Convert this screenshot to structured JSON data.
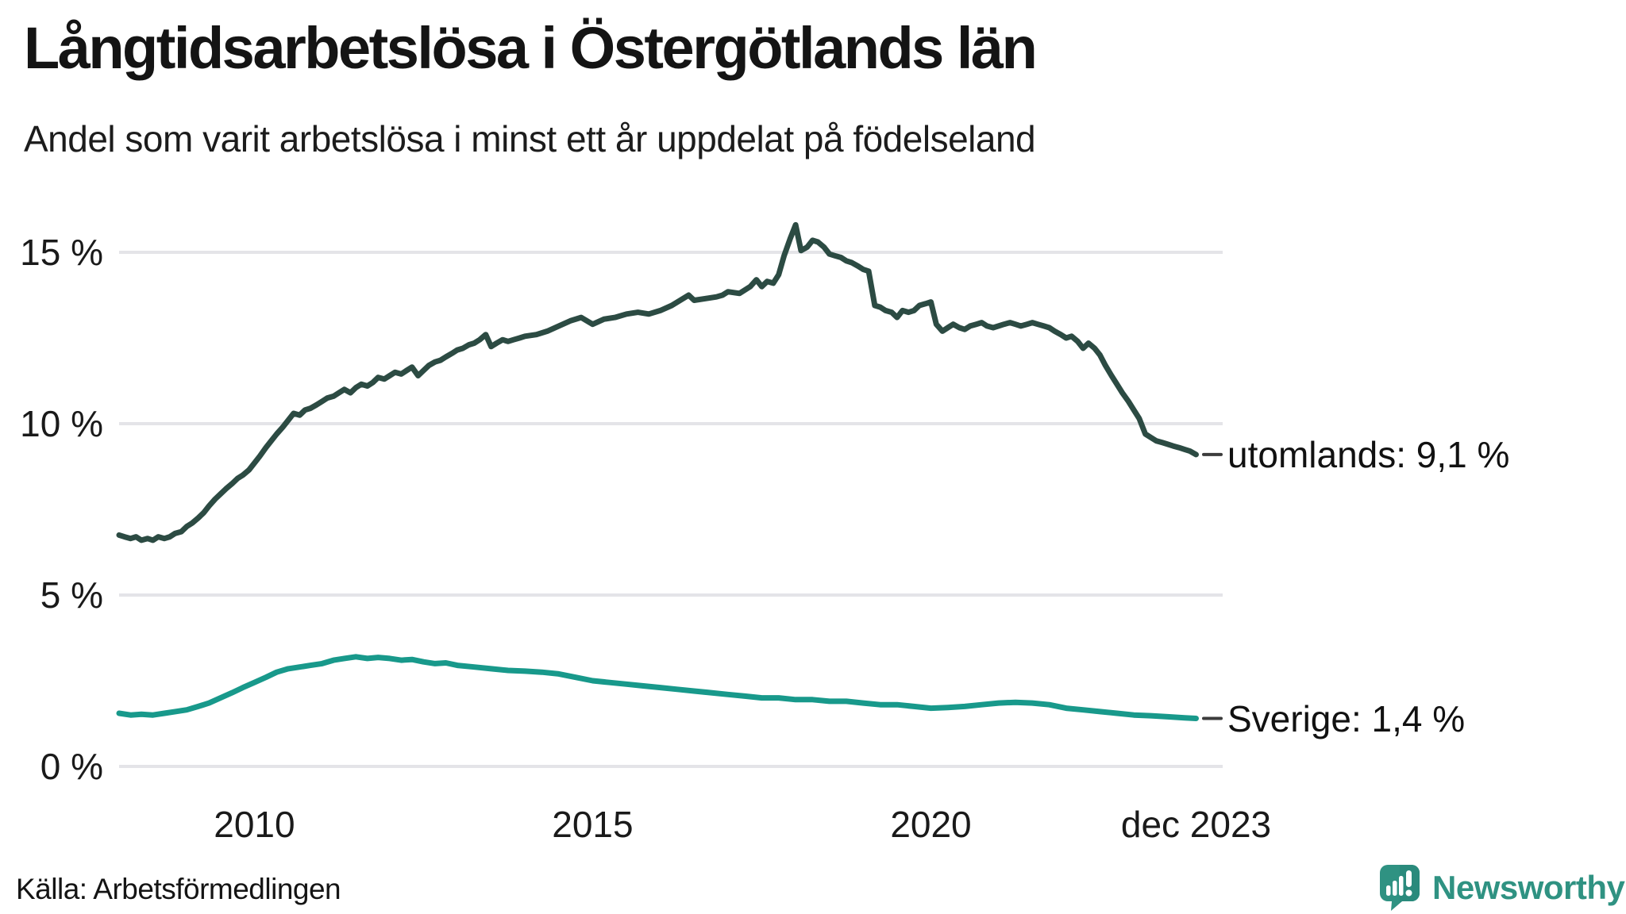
{
  "header": {
    "title": "Långtidsarbetslösa i Östergötlands län",
    "subtitle": "Andel som varit arbetslösa i minst ett år uppdelat på födelseland"
  },
  "footer": {
    "source": "Källa: Arbetsförmedlingen",
    "brand": "Newsworthy"
  },
  "colors": {
    "utomlands_line": "#2c4b43",
    "sverige_line": "#18998b",
    "gridline": "#e4e4e8",
    "end_dash": "#3c3c3c",
    "text": "#141414",
    "brand_teal": "#2f9282"
  },
  "chart_data": {
    "type": "line",
    "title": "Långtidsarbetslösa i Östergötlands län",
    "subtitle": "Andel som varit arbetslösa i minst ett år uppdelat på födelseland",
    "xlabel": "",
    "ylabel": "",
    "x_unit": "decimal_year",
    "xlim": [
      2008.0,
      2023.92
    ],
    "ylim": [
      0,
      15
    ],
    "grid": "horizontal",
    "legend_position": "end-of-line-labels",
    "y_ticks": [
      {
        "value": 0,
        "label": "0 %"
      },
      {
        "value": 5,
        "label": "5 %"
      },
      {
        "value": 10,
        "label": "10 %"
      },
      {
        "value": 15,
        "label": "15 %"
      }
    ],
    "x_ticks": [
      {
        "value": 2010,
        "label": "2010"
      },
      {
        "value": 2015,
        "label": "2015"
      },
      {
        "value": 2020,
        "label": "2020"
      },
      {
        "value": 2023.92,
        "label": "dec 2023"
      }
    ],
    "series": [
      {
        "name": "utomlands",
        "end_label": "utomlands: 9,1 %",
        "end_value": 9.1,
        "color": "#2c4b43",
        "points": [
          [
            2008.0,
            6.75
          ],
          [
            2008.08,
            6.7
          ],
          [
            2008.17,
            6.65
          ],
          [
            2008.25,
            6.7
          ],
          [
            2008.33,
            6.6
          ],
          [
            2008.42,
            6.65
          ],
          [
            2008.5,
            6.6
          ],
          [
            2008.58,
            6.7
          ],
          [
            2008.67,
            6.65
          ],
          [
            2008.75,
            6.7
          ],
          [
            2008.83,
            6.8
          ],
          [
            2008.92,
            6.85
          ],
          [
            2009.0,
            7.0
          ],
          [
            2009.08,
            7.1
          ],
          [
            2009.17,
            7.25
          ],
          [
            2009.25,
            7.4
          ],
          [
            2009.33,
            7.6
          ],
          [
            2009.42,
            7.8
          ],
          [
            2009.5,
            7.95
          ],
          [
            2009.58,
            8.1
          ],
          [
            2009.67,
            8.25
          ],
          [
            2009.75,
            8.4
          ],
          [
            2009.83,
            8.5
          ],
          [
            2009.92,
            8.65
          ],
          [
            2010.0,
            8.85
          ],
          [
            2010.08,
            9.05
          ],
          [
            2010.17,
            9.3
          ],
          [
            2010.25,
            9.5
          ],
          [
            2010.33,
            9.7
          ],
          [
            2010.42,
            9.9
          ],
          [
            2010.5,
            10.1
          ],
          [
            2010.58,
            10.3
          ],
          [
            2010.67,
            10.25
          ],
          [
            2010.75,
            10.4
          ],
          [
            2010.83,
            10.45
          ],
          [
            2010.92,
            10.55
          ],
          [
            2011.0,
            10.65
          ],
          [
            2011.08,
            10.75
          ],
          [
            2011.17,
            10.8
          ],
          [
            2011.25,
            10.9
          ],
          [
            2011.33,
            11.0
          ],
          [
            2011.42,
            10.9
          ],
          [
            2011.5,
            11.05
          ],
          [
            2011.58,
            11.15
          ],
          [
            2011.67,
            11.1
          ],
          [
            2011.75,
            11.2
          ],
          [
            2011.83,
            11.35
          ],
          [
            2011.92,
            11.3
          ],
          [
            2012.0,
            11.4
          ],
          [
            2012.08,
            11.5
          ],
          [
            2012.17,
            11.45
          ],
          [
            2012.25,
            11.55
          ],
          [
            2012.33,
            11.65
          ],
          [
            2012.42,
            11.4
          ],
          [
            2012.5,
            11.55
          ],
          [
            2012.58,
            11.7
          ],
          [
            2012.67,
            11.8
          ],
          [
            2012.75,
            11.85
          ],
          [
            2012.83,
            11.95
          ],
          [
            2012.92,
            12.05
          ],
          [
            2013.0,
            12.15
          ],
          [
            2013.08,
            12.2
          ],
          [
            2013.17,
            12.3
          ],
          [
            2013.25,
            12.35
          ],
          [
            2013.33,
            12.45
          ],
          [
            2013.42,
            12.6
          ],
          [
            2013.5,
            12.25
          ],
          [
            2013.58,
            12.35
          ],
          [
            2013.67,
            12.45
          ],
          [
            2013.75,
            12.4
          ],
          [
            2013.83,
            12.45
          ],
          [
            2013.92,
            12.5
          ],
          [
            2014.0,
            12.55
          ],
          [
            2014.17,
            12.6
          ],
          [
            2014.33,
            12.7
          ],
          [
            2014.5,
            12.85
          ],
          [
            2014.67,
            13.0
          ],
          [
            2014.83,
            13.1
          ],
          [
            2015.0,
            12.9
          ],
          [
            2015.17,
            13.05
          ],
          [
            2015.33,
            13.1
          ],
          [
            2015.5,
            13.2
          ],
          [
            2015.67,
            13.25
          ],
          [
            2015.83,
            13.2
          ],
          [
            2016.0,
            13.3
          ],
          [
            2016.17,
            13.45
          ],
          [
            2016.42,
            13.75
          ],
          [
            2016.5,
            13.6
          ],
          [
            2016.67,
            13.65
          ],
          [
            2016.83,
            13.7
          ],
          [
            2016.92,
            13.75
          ],
          [
            2017.0,
            13.85
          ],
          [
            2017.17,
            13.8
          ],
          [
            2017.33,
            14.0
          ],
          [
            2017.42,
            14.2
          ],
          [
            2017.5,
            14.0
          ],
          [
            2017.58,
            14.15
          ],
          [
            2017.67,
            14.1
          ],
          [
            2017.75,
            14.35
          ],
          [
            2017.83,
            14.9
          ],
          [
            2017.92,
            15.4
          ],
          [
            2018.0,
            15.8
          ],
          [
            2018.08,
            15.05
          ],
          [
            2018.17,
            15.15
          ],
          [
            2018.25,
            15.35
          ],
          [
            2018.33,
            15.3
          ],
          [
            2018.42,
            15.15
          ],
          [
            2018.5,
            14.95
          ],
          [
            2018.58,
            14.9
          ],
          [
            2018.67,
            14.85
          ],
          [
            2018.75,
            14.75
          ],
          [
            2018.83,
            14.7
          ],
          [
            2018.92,
            14.6
          ],
          [
            2019.0,
            14.5
          ],
          [
            2019.08,
            14.45
          ],
          [
            2019.17,
            13.45
          ],
          [
            2019.25,
            13.4
          ],
          [
            2019.33,
            13.3
          ],
          [
            2019.42,
            13.25
          ],
          [
            2019.5,
            13.1
          ],
          [
            2019.58,
            13.3
          ],
          [
            2019.67,
            13.25
          ],
          [
            2019.75,
            13.3
          ],
          [
            2019.83,
            13.45
          ],
          [
            2019.92,
            13.5
          ],
          [
            2020.0,
            13.55
          ],
          [
            2020.08,
            12.9
          ],
          [
            2020.17,
            12.7
          ],
          [
            2020.25,
            12.8
          ],
          [
            2020.33,
            12.9
          ],
          [
            2020.42,
            12.8
          ],
          [
            2020.5,
            12.75
          ],
          [
            2020.58,
            12.85
          ],
          [
            2020.67,
            12.9
          ],
          [
            2020.75,
            12.95
          ],
          [
            2020.83,
            12.85
          ],
          [
            2020.92,
            12.8
          ],
          [
            2021.0,
            12.85
          ],
          [
            2021.08,
            12.9
          ],
          [
            2021.17,
            12.95
          ],
          [
            2021.25,
            12.9
          ],
          [
            2021.33,
            12.85
          ],
          [
            2021.42,
            12.9
          ],
          [
            2021.5,
            12.95
          ],
          [
            2021.58,
            12.9
          ],
          [
            2021.67,
            12.85
          ],
          [
            2021.75,
            12.8
          ],
          [
            2021.83,
            12.7
          ],
          [
            2021.92,
            12.6
          ],
          [
            2022.0,
            12.5
          ],
          [
            2022.08,
            12.55
          ],
          [
            2022.17,
            12.4
          ],
          [
            2022.25,
            12.2
          ],
          [
            2022.33,
            12.35
          ],
          [
            2022.42,
            12.2
          ],
          [
            2022.5,
            12.0
          ],
          [
            2022.58,
            11.7
          ],
          [
            2022.67,
            11.4
          ],
          [
            2022.75,
            11.15
          ],
          [
            2022.83,
            10.9
          ],
          [
            2022.92,
            10.65
          ],
          [
            2023.0,
            10.4
          ],
          [
            2023.08,
            10.15
          ],
          [
            2023.17,
            9.7
          ],
          [
            2023.25,
            9.6
          ],
          [
            2023.33,
            9.5
          ],
          [
            2023.42,
            9.45
          ],
          [
            2023.5,
            9.4
          ],
          [
            2023.58,
            9.35
          ],
          [
            2023.67,
            9.3
          ],
          [
            2023.75,
            9.25
          ],
          [
            2023.83,
            9.2
          ],
          [
            2023.92,
            9.1
          ]
        ]
      },
      {
        "name": "Sverige",
        "end_label": "Sverige: 1,4 %",
        "end_value": 1.4,
        "color": "#18998b",
        "points": [
          [
            2008.0,
            1.55
          ],
          [
            2008.17,
            1.5
          ],
          [
            2008.33,
            1.52
          ],
          [
            2008.5,
            1.5
          ],
          [
            2008.67,
            1.55
          ],
          [
            2008.83,
            1.6
          ],
          [
            2009.0,
            1.65
          ],
          [
            2009.17,
            1.75
          ],
          [
            2009.33,
            1.85
          ],
          [
            2009.5,
            2.0
          ],
          [
            2009.67,
            2.15
          ],
          [
            2009.83,
            2.3
          ],
          [
            2010.0,
            2.45
          ],
          [
            2010.17,
            2.6
          ],
          [
            2010.33,
            2.75
          ],
          [
            2010.5,
            2.85
          ],
          [
            2010.67,
            2.9
          ],
          [
            2010.83,
            2.95
          ],
          [
            2011.0,
            3.0
          ],
          [
            2011.17,
            3.1
          ],
          [
            2011.33,
            3.15
          ],
          [
            2011.5,
            3.2
          ],
          [
            2011.67,
            3.15
          ],
          [
            2011.83,
            3.18
          ],
          [
            2012.0,
            3.15
          ],
          [
            2012.17,
            3.1
          ],
          [
            2012.33,
            3.12
          ],
          [
            2012.5,
            3.05
          ],
          [
            2012.67,
            3.0
          ],
          [
            2012.83,
            3.02
          ],
          [
            2013.0,
            2.95
          ],
          [
            2013.25,
            2.9
          ],
          [
            2013.5,
            2.85
          ],
          [
            2013.75,
            2.8
          ],
          [
            2014.0,
            2.78
          ],
          [
            2014.25,
            2.75
          ],
          [
            2014.5,
            2.7
          ],
          [
            2014.75,
            2.6
          ],
          [
            2015.0,
            2.5
          ],
          [
            2015.25,
            2.45
          ],
          [
            2015.5,
            2.4
          ],
          [
            2015.75,
            2.35
          ],
          [
            2016.0,
            2.3
          ],
          [
            2016.25,
            2.25
          ],
          [
            2016.5,
            2.2
          ],
          [
            2016.75,
            2.15
          ],
          [
            2017.0,
            2.1
          ],
          [
            2017.25,
            2.05
          ],
          [
            2017.5,
            2.0
          ],
          [
            2017.75,
            2.0
          ],
          [
            2018.0,
            1.95
          ],
          [
            2018.25,
            1.95
          ],
          [
            2018.5,
            1.9
          ],
          [
            2018.75,
            1.9
          ],
          [
            2019.0,
            1.85
          ],
          [
            2019.25,
            1.8
          ],
          [
            2019.5,
            1.8
          ],
          [
            2019.75,
            1.75
          ],
          [
            2020.0,
            1.7
          ],
          [
            2020.25,
            1.72
          ],
          [
            2020.5,
            1.75
          ],
          [
            2020.75,
            1.8
          ],
          [
            2021.0,
            1.85
          ],
          [
            2021.25,
            1.87
          ],
          [
            2021.5,
            1.85
          ],
          [
            2021.75,
            1.8
          ],
          [
            2022.0,
            1.7
          ],
          [
            2022.25,
            1.65
          ],
          [
            2022.5,
            1.6
          ],
          [
            2022.75,
            1.55
          ],
          [
            2023.0,
            1.5
          ],
          [
            2023.25,
            1.48
          ],
          [
            2023.5,
            1.45
          ],
          [
            2023.75,
            1.42
          ],
          [
            2023.92,
            1.4
          ]
        ]
      }
    ]
  }
}
